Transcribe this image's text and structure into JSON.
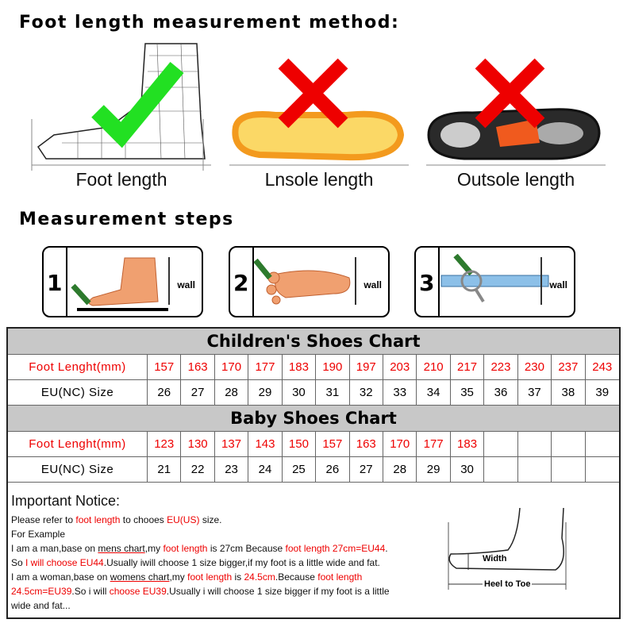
{
  "title": "Foot length measurement method:",
  "methods": [
    {
      "label": "Foot length",
      "mark": "check-icon",
      "mark_color": "#22e022"
    },
    {
      "label": "Lnsole length",
      "mark": "cross-icon",
      "mark_color": "#ee0000"
    },
    {
      "label": "Outsole length",
      "mark": "cross-icon",
      "mark_color": "#ee0000"
    }
  ],
  "steps_title": "Measurement steps",
  "steps": [
    {
      "num": "1",
      "wall": "wall"
    },
    {
      "num": "2",
      "wall": "wall"
    },
    {
      "num": "3",
      "wall": "wall"
    }
  ],
  "children": {
    "title": "Children's Shoes Chart",
    "row1_label": "Foot Lenght(mm)",
    "row2_label": "EU(NC) Size",
    "foot": [
      "157",
      "163",
      "170",
      "177",
      "183",
      "190",
      "197",
      "203",
      "210",
      "217",
      "223",
      "230",
      "237",
      "243"
    ],
    "eu": [
      "26",
      "27",
      "28",
      "29",
      "30",
      "31",
      "32",
      "33",
      "34",
      "35",
      "36",
      "37",
      "38",
      "39"
    ]
  },
  "baby": {
    "title": "Baby Shoes Chart",
    "row1_label": "Foot Lenght(mm)",
    "row2_label": "EU(NC) Size",
    "foot": [
      "123",
      "130",
      "137",
      "143",
      "150",
      "157",
      "163",
      "170",
      "177",
      "183",
      "",
      "",
      "",
      ""
    ],
    "eu": [
      "21",
      "22",
      "23",
      "24",
      "25",
      "26",
      "27",
      "28",
      "29",
      "30",
      "",
      "",
      "",
      ""
    ]
  },
  "notice": {
    "title": "Important Notice:",
    "l1": [
      "Please refer to ",
      "foot length",
      " to chooes ",
      "EU(US)",
      " size."
    ],
    "l2": "For Example",
    "l3": [
      "I am a man,base on ",
      "mens chart",
      ",my ",
      "foot length",
      " is 27cm Because ",
      "foot length 27cm=EU44",
      "."
    ],
    "l4": [
      "So ",
      "I will choose EU44",
      ".Usually iwill choose 1 size bigger,if my foot is a little wide and fat."
    ],
    "l5": [
      "I am a woman,base on ",
      "womens chart",
      ",my ",
      "foot length",
      " is ",
      "24.5cm",
      ".Because ",
      "foot length"
    ],
    "l6": [
      "24.5cm=EU39",
      ".So i will ",
      "choose EU39",
      ".Usually i will choose 1 size bigger if my foot is a little"
    ],
    "l7": "wide and fat...",
    "width_label": "Width",
    "heel_label": "Heel to Toe"
  }
}
